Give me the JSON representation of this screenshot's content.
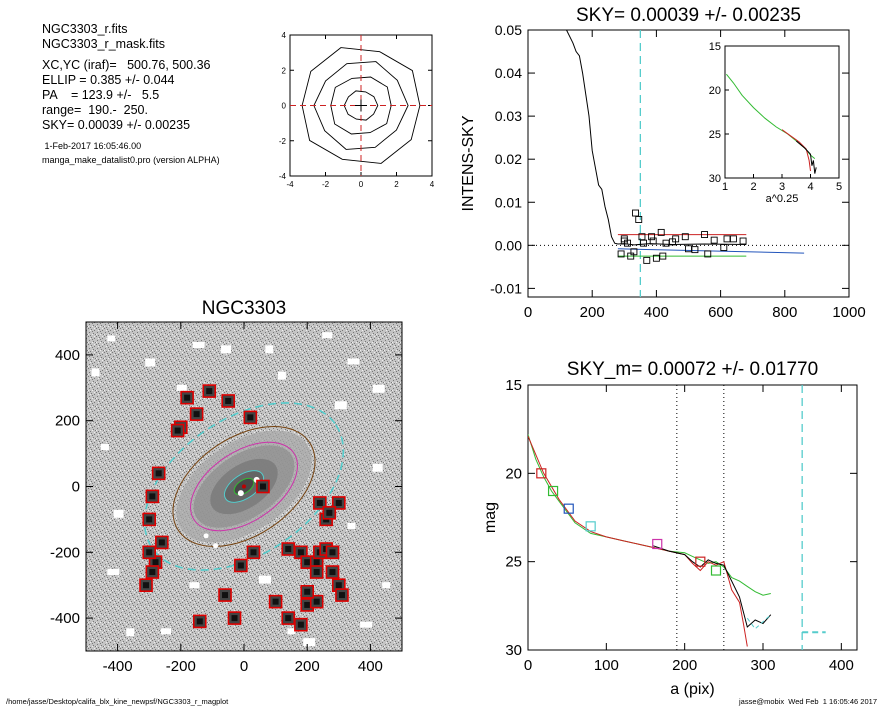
{
  "info": {
    "lines": [
      "NGC3303_r.fits",
      "NGC3303_r_mask.fits",
      "XC,YC (iraf)=   500.76, 500.36",
      "ELLIP = 0.385 +/- 0.044",
      "PA    = 123.9 +/-   5.5",
      "range=  190.-  250.",
      "SKY= 0.00039 +/- 0.00235"
    ],
    "date": " 1-Feb-2017 16:05:46.00",
    "program": "manga_make_datalist0.pro (version ALPHA)"
  },
  "footer": {
    "left": "/home/jasse/Desktop/califa_blx_kine_newpsf/NGC3303_r_magplot",
    "right": "jasse@mobix  Wed Feb  1 16:05:46 2017"
  },
  "colors": {
    "cyan": "#55cccc",
    "red": "#cc2222",
    "green": "#33bb33",
    "blue": "#2255bb",
    "magenta": "#cc33aa",
    "brown": "#774411"
  },
  "chart_data": [
    {
      "id": "contour",
      "type": "contour",
      "title": "",
      "xticks": [
        -4,
        -2,
        0,
        2,
        4
      ],
      "yticks": [
        -4,
        -2,
        0,
        2,
        4
      ],
      "xlim": [
        -4,
        4
      ],
      "ylim": [
        -4,
        4
      ],
      "center": [
        0,
        0
      ],
      "crosshair_color": "red"
    },
    {
      "id": "intens",
      "type": "line",
      "title": "SKY= 0.00039 +/- 0.00235",
      "ylabel": "INTENS-SKY",
      "xlabel": "",
      "xlim": [
        0,
        1000
      ],
      "ylim": [
        -0.012,
        0.05
      ],
      "xticks": [
        "0",
        "200",
        "400",
        "600",
        "800",
        "1000"
      ],
      "yticks": [
        "0.05",
        "0.04",
        "0.03",
        "0.02",
        "0.01",
        "0.00",
        "-0.01"
      ],
      "yticks_vals": [
        0.05,
        0.04,
        0.03,
        0.02,
        0.01,
        0.0,
        -0.01
      ],
      "vline_x": 350,
      "zero_line": 0,
      "profile": {
        "x": [
          120,
          140,
          150,
          160,
          170,
          180,
          190,
          200,
          210,
          220,
          230,
          240,
          250,
          260,
          270,
          280,
          300,
          330,
          380,
          450,
          550,
          680
        ],
        "y": [
          0.05,
          0.047,
          0.045,
          0.044,
          0.04,
          0.035,
          0.03,
          0.022,
          0.018,
          0.014,
          0.013,
          0.009,
          0.006,
          0.002,
          0.0005,
          0.0003,
          0.0004,
          0.0001,
          0.0004,
          0.0002,
          0.0003,
          0.0002
        ]
      },
      "sky_lines": [
        {
          "color": "red",
          "x": [
            280,
            680
          ],
          "y": [
            0.0025,
            0.0025
          ]
        },
        {
          "color": "green",
          "x": [
            280,
            680
          ],
          "y": [
            -0.0025,
            -0.0025
          ]
        },
        {
          "color": "blue",
          "x": [
            280,
            860
          ],
          "y": [
            -0.0008,
            -0.0018
          ]
        }
      ],
      "sky_points": {
        "x": [
          290,
          300,
          310,
          320,
          335,
          345,
          355,
          370,
          385,
          400,
          415,
          430,
          460,
          490,
          520,
          550,
          580,
          610,
          640,
          670,
          300,
          330,
          360,
          390,
          420,
          450,
          500,
          560,
          620
        ],
        "y": [
          -0.002,
          0.001,
          0.0005,
          -0.0025,
          0.0075,
          0.006,
          0.002,
          -0.0035,
          0.002,
          -0.003,
          0.003,
          0.0005,
          0.0015,
          0.002,
          -0.001,
          0.0025,
          0.0012,
          -0.0005,
          0.0015,
          0.001,
          0.0015,
          -0.0015,
          0.0005,
          0.001,
          -0.0025,
          0.0008,
          -0.0008,
          -0.002,
          0.0015
        ]
      },
      "inset": {
        "xlabel": "a^0.25",
        "xlim": [
          1,
          5
        ],
        "ylim": [
          15,
          30
        ],
        "xticks": [
          "1",
          "2",
          "3",
          "4",
          "5"
        ],
        "yticks": [
          "15",
          "20",
          "25",
          "30"
        ],
        "green": {
          "x": [
            1.05,
            1.3,
            1.6,
            2.0,
            2.4,
            2.8,
            3.2,
            3.5,
            3.8,
            4.0,
            4.15
          ],
          "y": [
            18.2,
            19.2,
            20.6,
            22.0,
            23.2,
            24.2,
            25.0,
            25.8,
            26.6,
            27.4,
            27.8
          ]
        },
        "red": {
          "x": [
            3.0,
            3.3,
            3.6,
            3.85,
            3.95,
            4.0
          ],
          "y": [
            24.5,
            25.2,
            25.9,
            26.7,
            28.0,
            29.2
          ]
        },
        "black": {
          "x": [
            3.5,
            3.8,
            4.0,
            4.05,
            4.1,
            4.15,
            4.2
          ],
          "y": [
            25.8,
            26.6,
            27.3,
            28.6,
            28.0,
            29.5,
            28.8
          ]
        }
      }
    },
    {
      "id": "galaxy",
      "type": "image",
      "title": "NGC3303",
      "xlim": [
        -500,
        500
      ],
      "ylim": [
        -500,
        500
      ],
      "xticks": [
        "-400",
        "-200",
        "0",
        "200",
        "400"
      ],
      "yticks": [
        "400",
        "200",
        "0",
        "-200",
        "-400"
      ],
      "xticks_vals": [
        -400,
        -200,
        0,
        200,
        400
      ],
      "yticks_vals": [
        400,
        200,
        0,
        -200,
        -400
      ],
      "ellipses": [
        {
          "color": "cyan",
          "a": 350,
          "b": 215,
          "pa": 123.9,
          "dashed": true
        },
        {
          "color": "brown",
          "a": 250,
          "b": 155,
          "pa": 123.9,
          "dashed": false
        },
        {
          "color": "magenta",
          "a": 190,
          "b": 110,
          "pa": 123.9,
          "dashed": false
        },
        {
          "color": "cyan",
          "a": 70,
          "b": 38,
          "pa": 123.9,
          "dashed": false
        },
        {
          "color": "green",
          "a": 35,
          "b": 20,
          "pa": 123.9,
          "dashed": false
        }
      ],
      "mask_boxes": {
        "x": [
          -110,
          -50,
          -180,
          -150,
          -200,
          -210,
          -270,
          -290,
          -300,
          -280,
          -260,
          -300,
          -290,
          -310,
          -140,
          -30,
          60,
          20,
          30,
          140,
          180,
          200,
          230,
          240,
          260,
          280,
          300,
          310,
          200,
          230,
          180,
          260,
          240,
          300,
          270,
          230,
          280,
          100,
          200,
          140,
          -10,
          -60
        ],
        "y": [
          290,
          260,
          270,
          220,
          180,
          170,
          40,
          -30,
          -100,
          -230,
          -170,
          -200,
          -260,
          -300,
          -410,
          -400,
          0,
          210,
          -200,
          -190,
          -200,
          -230,
          -230,
          -200,
          -190,
          -260,
          -300,
          -330,
          -360,
          -350,
          -420,
          -100,
          -50,
          -50,
          -80,
          -260,
          -200,
          -350,
          -320,
          -400,
          -240,
          -330
        ]
      },
      "center_marker": [
        0,
        0
      ]
    },
    {
      "id": "mag",
      "type": "line",
      "title": "SKY_m=  0.00072 +/- 0.01770",
      "ylabel": "mag",
      "xlabel": "a (pix)",
      "xlim": [
        0,
        420
      ],
      "ylim": [
        15,
        30
      ],
      "xticks": [
        "0",
        "100",
        "200",
        "300",
        "400"
      ],
      "yticks": [
        "15",
        "20",
        "25",
        "30"
      ],
      "xticks_vals": [
        0,
        100,
        200,
        300,
        400
      ],
      "yticks_vals": [
        15,
        20,
        25,
        30
      ],
      "vlines_dotted": [
        190,
        250
      ],
      "vline_dashed": 350,
      "green": {
        "x": [
          0,
          10,
          20,
          30,
          40,
          50,
          60,
          80,
          100,
          120,
          140,
          160,
          180,
          200,
          210,
          220,
          230,
          240,
          250,
          260,
          270,
          280,
          290,
          300,
          310
        ],
        "y": [
          17.8,
          19.2,
          20.2,
          21.0,
          21.6,
          22.2,
          22.8,
          23.4,
          23.6,
          23.8,
          24.0,
          24.2,
          24.4,
          24.5,
          24.7,
          24.9,
          25.1,
          25.0,
          25.3,
          25.9,
          26.1,
          26.4,
          26.7,
          26.9,
          26.8
        ]
      },
      "red": {
        "x": [
          0,
          20,
          40,
          60,
          80,
          100,
          120,
          140,
          160,
          180,
          200,
          210,
          220,
          230,
          240,
          250,
          260,
          270,
          275,
          280
        ],
        "y": [
          17.9,
          20.0,
          21.5,
          22.7,
          23.3,
          23.6,
          23.8,
          24.0,
          24.2,
          24.4,
          24.6,
          25.1,
          25.5,
          25.0,
          25.2,
          25.0,
          26.6,
          27.3,
          28.5,
          29.8
        ]
      },
      "black": {
        "x": [
          160,
          180,
          200,
          210,
          220,
          230,
          240,
          250,
          260,
          270,
          280,
          290,
          300,
          310
        ],
        "y": [
          24.1,
          24.4,
          24.6,
          25.0,
          25.3,
          24.9,
          25.1,
          25.2,
          26.1,
          27.0,
          28.7,
          28.3,
          28.5,
          28.0
        ]
      },
      "cyan_tail": {
        "x": [
          280,
          290,
          300,
          310
        ],
        "y": [
          28.2,
          28.8,
          28.4,
          28.0
        ]
      },
      "sky_dash": {
        "x": [
          350,
          380
        ],
        "y": [
          29.0,
          29.0
        ]
      },
      "markers": [
        {
          "x": 17,
          "y": 20.0,
          "color": "red"
        },
        {
          "x": 32,
          "y": 21.0,
          "color": "green"
        },
        {
          "x": 52,
          "y": 22.0,
          "color": "blue"
        },
        {
          "x": 80,
          "y": 23.0,
          "color": "cyan"
        },
        {
          "x": 165,
          "y": 24.0,
          "color": "magenta"
        },
        {
          "x": 220,
          "y": 25.0,
          "color": "red"
        },
        {
          "x": 240,
          "y": 25.5,
          "color": "green"
        }
      ]
    }
  ]
}
